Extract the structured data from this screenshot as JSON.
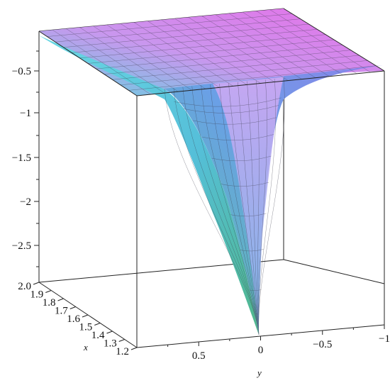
{
  "chart_data": {
    "type": "surface3d",
    "title": "",
    "xlabel": "x",
    "ylabel": "y",
    "zlabel": "",
    "x_range": [
      1.2,
      2.0
    ],
    "y_range": [
      -1,
      1
    ],
    "z_range": [
      -3.0,
      -0.1
    ],
    "x_ticks": [
      "1.2",
      "1.3",
      "1.4",
      "1.5",
      "1.6",
      "1.7",
      "1.8",
      "1.9",
      "2.0"
    ],
    "y_ticks": [
      "0.5",
      "0",
      "−0.5",
      "−1"
    ],
    "z_ticks": [
      "−0.5",
      "−1",
      "−1.5",
      "−2",
      "−2.5"
    ],
    "surface_description": "Trough surface, deepest near y = 0 at x = 1.2 (about -3), rising toward about -0.2 at the y edges and as x increases.",
    "colormap": [
      "#e978ef",
      "#a988f0",
      "#5fcde0",
      "#57cfa8",
      "#4fa070"
    ]
  }
}
